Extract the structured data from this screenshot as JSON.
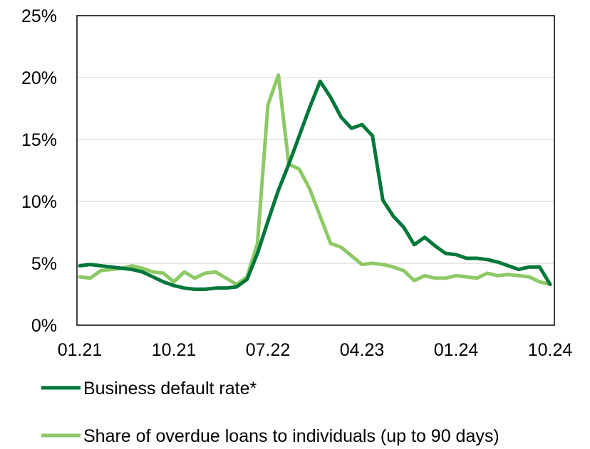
{
  "chart_data": {
    "type": "line",
    "title": "",
    "xlabel": "",
    "ylabel": "",
    "ylim": [
      0,
      25
    ],
    "y_ticks": [
      "0%",
      "5%",
      "10%",
      "15%",
      "20%",
      "25%"
    ],
    "x_tick_labels": [
      "01.21",
      "10.21",
      "07.22",
      "04.23",
      "01.24",
      "10.24"
    ],
    "x": [
      "01.21",
      "02.21",
      "03.21",
      "04.21",
      "05.21",
      "06.21",
      "07.21",
      "08.21",
      "09.21",
      "10.21",
      "11.21",
      "12.21",
      "01.22",
      "02.22",
      "03.22",
      "04.22",
      "05.22",
      "06.22",
      "07.22",
      "08.22",
      "09.22",
      "10.22",
      "11.22",
      "12.22",
      "01.23",
      "02.23",
      "03.23",
      "04.23",
      "05.23",
      "06.23",
      "07.23",
      "08.23",
      "09.23",
      "10.23",
      "11.23",
      "12.23",
      "01.24",
      "02.24",
      "03.24",
      "04.24",
      "05.24",
      "06.24",
      "07.24",
      "08.24",
      "09.24",
      "10.24"
    ],
    "grid": true,
    "legend_position": "bottom",
    "series": [
      {
        "name": "Business default rate*",
        "color": "#00773A",
        "values": [
          4.8,
          4.9,
          4.8,
          4.7,
          4.6,
          4.5,
          4.3,
          3.9,
          3.5,
          3.2,
          3.0,
          2.9,
          2.9,
          3.0,
          3.0,
          3.1,
          3.7,
          5.8,
          8.4,
          10.9,
          13.0,
          15.3,
          17.6,
          19.7,
          18.4,
          16.8,
          15.9,
          16.2,
          15.3,
          10.1,
          8.8,
          7.9,
          6.5,
          7.1,
          6.4,
          5.8,
          5.7,
          5.4,
          5.4,
          5.3,
          5.1,
          4.8,
          4.5,
          4.7,
          4.7,
          3.3
        ]
      },
      {
        "name": "Share of overdue loans to individuals (up to 90 days)",
        "color": "#8DC965",
        "values": [
          3.9,
          3.8,
          4.4,
          4.5,
          4.6,
          4.8,
          4.6,
          4.3,
          4.2,
          3.5,
          4.3,
          3.8,
          4.2,
          4.3,
          3.8,
          3.3,
          3.9,
          6.6,
          17.8,
          20.2,
          13.0,
          12.6,
          11.0,
          8.8,
          6.6,
          6.3,
          5.6,
          4.9,
          5.0,
          4.9,
          4.7,
          4.4,
          3.6,
          4.0,
          3.8,
          3.8,
          4.0,
          3.9,
          3.8,
          4.2,
          4.0,
          4.1,
          4.0,
          3.9,
          3.5,
          3.3
        ]
      }
    ]
  }
}
